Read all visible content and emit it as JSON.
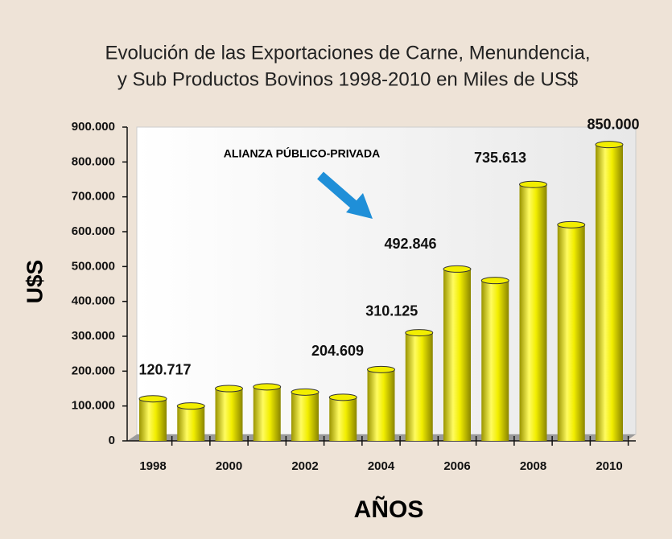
{
  "chart_data": {
    "type": "bar",
    "title": "Evolución de las Exportaciones de Carne, Menundencia,",
    "subtitle": "y Sub Productos Bovinos  1998-2010 en Miles de US$",
    "x_label": "AÑOS",
    "y_label": "U$S",
    "annotation": "ALIANZA PÚBLICO-PRIVADA",
    "categories": [
      "1998",
      null,
      "2000",
      null,
      "2002",
      null,
      "2004",
      null,
      "2006",
      null,
      "2008",
      null,
      "2010"
    ],
    "values": [
      120717,
      100000,
      150000,
      155000,
      140000,
      125000,
      204609,
      310125,
      492846,
      460000,
      735613,
      620000,
      850000
    ],
    "value_labels": [
      "120.717",
      null,
      null,
      null,
      null,
      null,
      "204.609",
      "310.125",
      "492.846",
      null,
      "735.613",
      null,
      "850.000"
    ],
    "color": "#f2ee00",
    "ylim": [
      0,
      900000
    ],
    "yticks": [
      0,
      {
        "value": 100000,
        "label": "100.000"
      },
      {
        "value": 200000,
        "label": "200.000"
      },
      {
        "value": 300000,
        "label": "300.000"
      },
      {
        "value": 400000,
        "label": "400.000"
      },
      {
        "value": 500000,
        "label": "500.000"
      },
      {
        "value": 600000,
        "label": "600.000"
      },
      {
        "value": 700000,
        "label": "700.000"
      },
      {
        "value": 800000,
        "label": "800.000"
      },
      {
        "value": 900000,
        "label": "900.000"
      }
    ]
  }
}
